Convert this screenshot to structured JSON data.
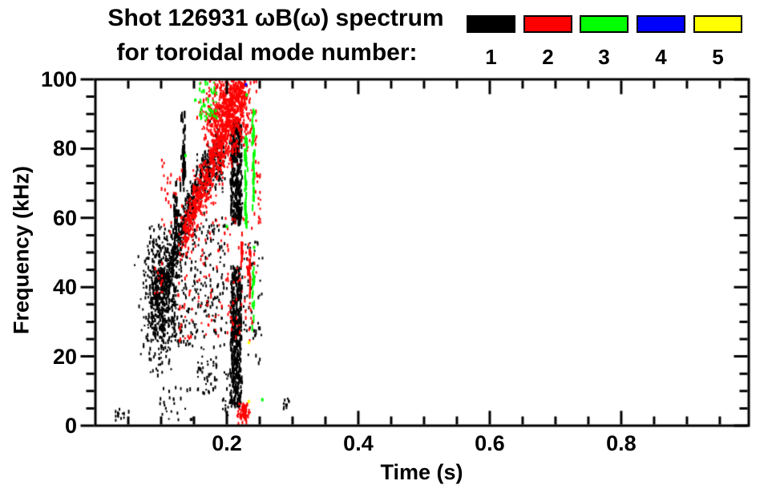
{
  "header": {
    "title_line1": "Shot 126931 ωB(ω) spectrum",
    "title_line2": "for toroidal mode number:"
  },
  "legend": {
    "modes": [
      {
        "label": "1",
        "color": "#000000"
      },
      {
        "label": "2",
        "color": "#ff0000"
      },
      {
        "label": "3",
        "color": "#00ff00"
      },
      {
        "label": "4",
        "color": "#0000ff"
      },
      {
        "label": "5",
        "color": "#ffff00"
      }
    ]
  },
  "chart_data": {
    "type": "scatter",
    "subtype": "magnetic-fluctuation-spectrogram",
    "title": "Shot 126931 ωB(ω) spectrum for toroidal mode number:",
    "xlabel": "Time (s)",
    "ylabel": "Frequency (kHz)",
    "xlim": [
      0,
      0.994
    ],
    "ylim": [
      0,
      100
    ],
    "x_major_ticks": [
      0.2,
      0.4,
      0.6,
      0.8
    ],
    "x_major_tick_labels": [
      "0.2",
      "0.4",
      "0.6",
      "0.8"
    ],
    "x_minor_tick_step": 0.05,
    "y_major_ticks": [
      0,
      20,
      40,
      60,
      80,
      100
    ],
    "y_major_tick_labels": [
      "0",
      "20",
      "40",
      "60",
      "80",
      "100"
    ],
    "y_minor_tick_step": 5,
    "grid": false,
    "legend_position": "top-right",
    "axis_color": "#000000",
    "background_color": "#ffffff",
    "mark": {
      "width": 2,
      "height_min": 2,
      "height_max": 5
    },
    "seed": 20,
    "series": [
      {
        "name": "toroidal mode n=1",
        "legend_label": "1",
        "color": "#000000",
        "clusters": [
          {
            "kind": "blob",
            "t": 0.1,
            "f": 38,
            "st": 0.012,
            "sf": 9,
            "n": 700,
            "fmin": 14,
            "fmax": 58
          },
          {
            "kind": "band",
            "t0": 0.112,
            "t1": 0.196,
            "f0": 44,
            "f1": 78,
            "sf0": 3,
            "sf1": 4,
            "n": 550,
            "curve": "easeout"
          },
          {
            "kind": "scatter",
            "t0": 0.115,
            "t1": 0.2,
            "f0": 22,
            "f1": 60,
            "n": 260
          },
          {
            "kind": "vstreak",
            "t": 0.134,
            "f0": 68,
            "f1": 90,
            "jt": 0.002,
            "n": 55
          },
          {
            "kind": "vstreak",
            "t": 0.122,
            "f0": 50,
            "f1": 70,
            "jt": 0.002,
            "n": 35
          },
          {
            "kind": "col",
            "t0": 0.2065,
            "t1": 0.2225,
            "f0": 58,
            "f1": 88,
            "n": 340
          },
          {
            "kind": "col",
            "t0": 0.206,
            "t1": 0.2215,
            "f0": 5.5,
            "f1": 46,
            "n": 400
          },
          {
            "kind": "scatter",
            "t0": 0.225,
            "t1": 0.255,
            "f0": 18,
            "f1": 55,
            "n": 55
          },
          {
            "kind": "scatter",
            "t0": 0.03,
            "t1": 0.052,
            "f0": 1.5,
            "f1": 5.5,
            "n": 14
          },
          {
            "kind": "scatter",
            "t0": 0.095,
            "t1": 0.15,
            "f0": 1,
            "f1": 11,
            "n": 26
          },
          {
            "kind": "scatter",
            "t0": 0.155,
            "t1": 0.185,
            "f0": 8,
            "f1": 20,
            "n": 45
          },
          {
            "kind": "scatter",
            "t0": 0.283,
            "t1": 0.296,
            "f0": 4,
            "f1": 8,
            "n": 10
          },
          {
            "kind": "scatter",
            "t0": 0.193,
            "t1": 0.205,
            "f0": 2,
            "f1": 16,
            "n": 18
          }
        ]
      },
      {
        "name": "toroidal mode n=2",
        "legend_label": "2",
        "color": "#ff0000",
        "clusters": [
          {
            "kind": "band",
            "t0": 0.135,
            "t1": 0.228,
            "f0": 55,
            "f1": 100,
            "sf0": 3,
            "sf1": 7,
            "n": 950,
            "bias": 1.3
          },
          {
            "kind": "blob",
            "t": 0.197,
            "f": 91,
            "st": 0.016,
            "sf": 6,
            "n": 430,
            "fmin": 70,
            "fmax": 100
          },
          {
            "kind": "scatter",
            "t0": 0.125,
            "t1": 0.245,
            "f0": 24,
            "f1": 60,
            "n": 150
          },
          {
            "kind": "blob",
            "t": 0.226,
            "f": 3.5,
            "st": 0.005,
            "sf": 1.6,
            "n": 70,
            "fmin": 0.5,
            "fmax": 7
          },
          {
            "kind": "scatter",
            "t0": 0.09,
            "t1": 0.103,
            "f0": 38,
            "f1": 47,
            "n": 12
          },
          {
            "kind": "scatter",
            "t0": 0.1,
            "t1": 0.135,
            "f0": 55,
            "f1": 78,
            "n": 30
          },
          {
            "kind": "vstreak",
            "t": 0.2225,
            "f0": 46,
            "f1": 56,
            "jt": 0.001,
            "n": 14
          },
          {
            "kind": "vstreak",
            "t": 0.235,
            "f0": 34,
            "f1": 51,
            "jt": 0.001,
            "n": 18
          },
          {
            "kind": "scatter",
            "t0": 0.238,
            "t1": 0.252,
            "f0": 58,
            "f1": 78,
            "n": 22
          },
          {
            "kind": "scatter",
            "t0": 0.228,
            "t1": 0.245,
            "f0": 80,
            "f1": 100,
            "n": 35
          }
        ]
      },
      {
        "name": "toroidal mode n=3",
        "legend_label": "3",
        "color": "#00ff00",
        "clusters": [
          {
            "kind": "scatter",
            "t0": 0.158,
            "t1": 0.186,
            "f0": 88,
            "f1": 100,
            "n": 55
          },
          {
            "kind": "vstreak",
            "t": 0.2285,
            "f0": 57,
            "f1": 83,
            "jt": 0.0012,
            "n": 45
          },
          {
            "kind": "vstreak",
            "t": 0.2405,
            "f0": 60,
            "f1": 93,
            "jt": 0.0012,
            "n": 40
          },
          {
            "kind": "vstreak",
            "t": 0.2405,
            "f0": 28,
            "f1": 46,
            "jt": 0.0012,
            "n": 16
          },
          {
            "kind": "points",
            "pts": [
              [
                0.254,
                7.5
              ],
              [
                0.2,
                57.5
              ],
              [
                0.2415,
                51.5
              ],
              [
                0.152,
                94.0
              ],
              [
                0.23,
                95.5
              ],
              [
                0.137,
                78.0
              ]
            ]
          }
        ]
      },
      {
        "name": "toroidal mode n=4",
        "legend_label": "4",
        "color": "#0000ff",
        "clusters": [
          {
            "kind": "points",
            "pts": [
              [
                0.229,
                98.5
              ]
            ]
          }
        ]
      },
      {
        "name": "toroidal mode n=5",
        "legend_label": "5",
        "color": "#ffff00",
        "clusters": [
          {
            "kind": "points",
            "pts": [
              [
                0.2335,
                24.0
              ],
              [
                0.2335,
                7.0
              ]
            ]
          }
        ]
      }
    ]
  }
}
